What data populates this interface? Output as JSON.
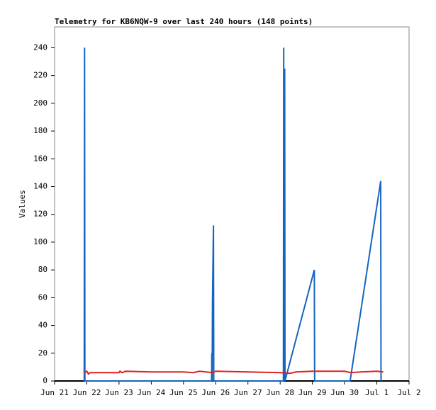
{
  "chart_data": {
    "type": "line",
    "title": "Telemetry for KB6NQW-9 over last 240 hours (148 points)",
    "y_label": "Values",
    "xlim": [
      0,
      11
    ],
    "xticks": [
      {
        "value": 0,
        "label": "Jun 21"
      },
      {
        "value": 1,
        "label": "Jun 22"
      },
      {
        "value": 2,
        "label": "Jun 23"
      },
      {
        "value": 3,
        "label": "Jun 24"
      },
      {
        "value": 4,
        "label": "Jun 25"
      },
      {
        "value": 5,
        "label": "Jun 26"
      },
      {
        "value": 6,
        "label": "Jun 27"
      },
      {
        "value": 7,
        "label": "Jun 28"
      },
      {
        "value": 8,
        "label": "Jun 29"
      },
      {
        "value": 9,
        "label": "Jun 30"
      },
      {
        "value": 10,
        "label": "Jul 1"
      },
      {
        "value": 11,
        "label": "Jul 2"
      }
    ],
    "ylim": [
      0,
      255
    ],
    "yticks": [
      0,
      20,
      40,
      60,
      80,
      100,
      120,
      140,
      160,
      180,
      200,
      220,
      240
    ],
    "series": [
      {
        "color": "#1565c0",
        "x": [
          0.92,
          0.93,
          0.94,
          4.87,
          4.88,
          4.89,
          4.9,
          4.92,
          4.93,
          4.94,
          7.1,
          7.11,
          7.13,
          7.14,
          7.15,
          8.06,
          8.07,
          9.17,
          10.12,
          10.13
        ],
        "values": [
          0,
          240,
          0,
          0,
          20,
          0,
          57,
          94,
          112,
          0,
          0,
          240,
          0,
          225,
          0,
          80,
          0,
          0,
          144,
          0
        ]
      },
      {
        "color": "#e02020",
        "x": [
          0.92,
          1.0,
          1.05,
          1.1,
          2.0,
          2.03,
          2.1,
          2.2,
          3.0,
          4.0,
          4.3,
          4.5,
          4.9,
          5.0,
          6.0,
          7.0,
          7.3,
          7.5,
          8.0,
          8.2,
          9.0,
          9.2,
          9.5,
          10.0,
          10.2
        ],
        "values": [
          6,
          7,
          5,
          6,
          6,
          7,
          6,
          7,
          6.5,
          6.5,
          6,
          7,
          6,
          7,
          6.5,
          6,
          5.5,
          6.5,
          7,
          7,
          7,
          6,
          6.5,
          7,
          6.5
        ]
      }
    ]
  }
}
